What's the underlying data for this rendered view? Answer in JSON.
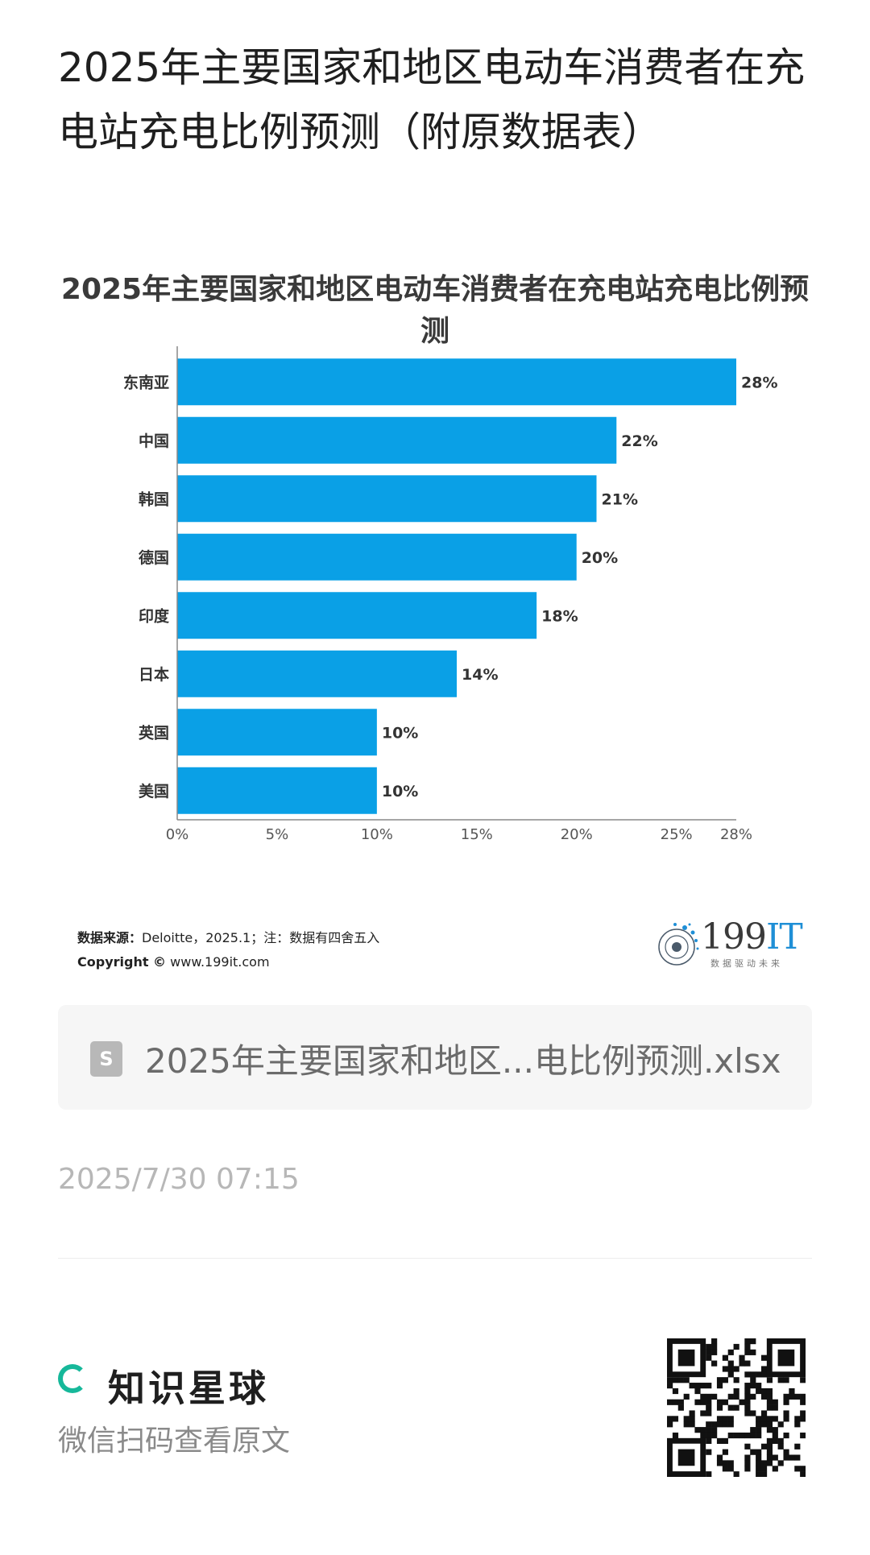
{
  "page_title": "2025年主要国家和地区电动车消费者在充电站充电比例预测（附原数据表）",
  "chart_data": {
    "type": "bar",
    "orientation": "horizontal",
    "title": "2025年主要国家和地区电动车消费者在充电站充电比例预测",
    "categories": [
      "东南亚",
      "中国",
      "韩国",
      "德国",
      "印度",
      "日本",
      "英国",
      "美国"
    ],
    "values": [
      28,
      22,
      21,
      20,
      18,
      14,
      10,
      10
    ],
    "value_labels": [
      "28%",
      "22%",
      "21%",
      "20%",
      "18%",
      "14%",
      "10%",
      "10%"
    ],
    "xlim": [
      0,
      28
    ],
    "x_ticks": [
      0,
      5,
      10,
      15,
      20,
      25,
      28
    ],
    "x_tick_labels": [
      "0%",
      "5%",
      "10%",
      "15%",
      "20%",
      "25%",
      "28%"
    ],
    "bar_color": "#0aa0e6",
    "grid": false,
    "legend": "none"
  },
  "source": {
    "label": "数据来源：",
    "text": "Deloitte，2025.1；注：数据有四舍五入",
    "copyright_label": "Copyright ©",
    "copyright_site": "www.199it.com"
  },
  "logo": {
    "name_num": "199",
    "name_it": "IT",
    "tagline": "数据驱动未来"
  },
  "file": {
    "icon_letter": "S",
    "name": "2025年主要国家和地区...电比例预测.xlsx"
  },
  "timestamp": "2025/7/30 07:15",
  "brand": {
    "name": "知识星球",
    "accent": "#16b89a"
  },
  "scan_text": "微信扫码查看原文"
}
